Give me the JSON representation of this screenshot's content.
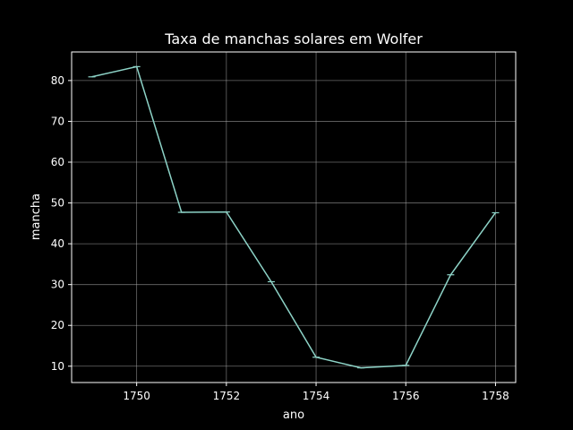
{
  "chart_data": {
    "type": "line",
    "title": "Taxa de manchas solares em Wolfer",
    "xlabel": "ano",
    "ylabel": "mancha",
    "x": [
      1749,
      1750,
      1751,
      1752,
      1753,
      1754,
      1755,
      1756,
      1757,
      1758
    ],
    "series": [
      {
        "values": [
          80.9,
          83.4,
          47.7,
          47.8,
          30.7,
          12.2,
          9.6,
          10.2,
          32.4,
          47.6
        ]
      }
    ],
    "xlim": [
      1748.55,
      1758.45
    ],
    "ylim": [
      6.0,
      87.0
    ],
    "xticks": [
      "1750",
      "1752",
      "1754",
      "1756",
      "1758"
    ],
    "yticks": [
      "10",
      "20",
      "30",
      "40",
      "50",
      "60",
      "70",
      "80"
    ],
    "grid": true,
    "colors": {
      "background": "#000000",
      "line": "#8dd3c7",
      "grid": "#b0b0b0",
      "axes": "#ffffff"
    }
  }
}
